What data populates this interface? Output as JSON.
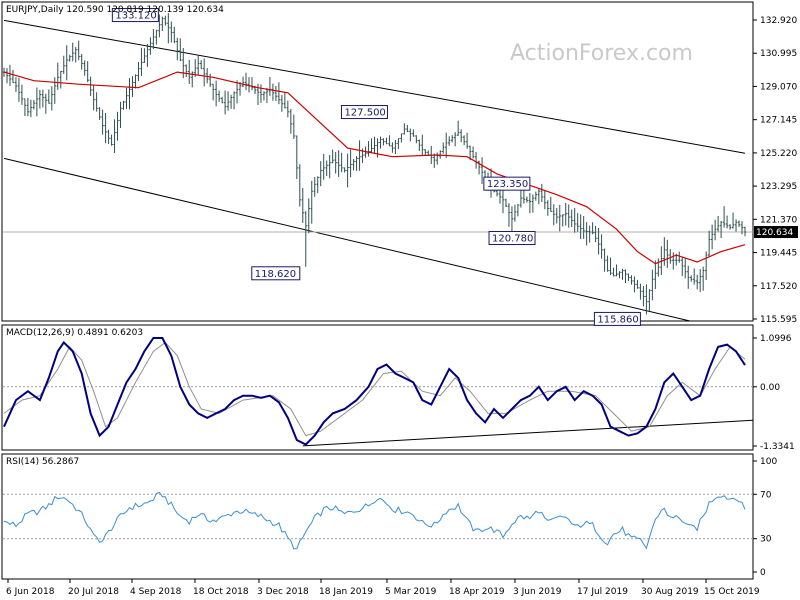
{
  "chart_data": [
    {
      "type": "candlestick",
      "symbol": "EURJPY",
      "timeframe": "Daily",
      "header": "EURJPY,Daily  120.590 120.819 120.139 120.634",
      "ohlc_last": {
        "open": 120.59,
        "high": 120.819,
        "low": 120.139,
        "close": 120.634
      },
      "current_price": 120.634,
      "current_price_label": "120.634",
      "watermark": "ActionForex.com",
      "y_ticks": [
        "132.920",
        "130.995",
        "129.070",
        "127.145",
        "125.220",
        "123.295",
        "121.370",
        "119.445",
        "117.520",
        "115.595"
      ],
      "ylim": [
        115.595,
        133.6
      ],
      "x_labels": [
        "6 Jun 2018",
        "20 Jul 2018",
        "4 Sep 2018",
        "18 Oct 2018",
        "3 Dec 2018",
        "18 Jan 2019",
        "5 Mar 2019",
        "18 Apr 2019",
        "3 Jun 2019",
        "17 Jul 2019",
        "30 Aug 2019",
        "15 Oct 2019"
      ],
      "annotations": [
        {
          "text": "133.120",
          "value": 133.12
        },
        {
          "text": "127.500",
          "value": 127.5
        },
        {
          "text": "123.350",
          "value": 123.35
        },
        {
          "text": "120.780",
          "value": 120.78
        },
        {
          "text": "118.620",
          "value": 118.62
        },
        {
          "text": "115.860",
          "value": 115.86
        }
      ],
      "price_path": [
        [
          0,
          129.9
        ],
        [
          4,
          129.1
        ],
        [
          8,
          127.6
        ],
        [
          12,
          128.6
        ],
        [
          15,
          128.1
        ],
        [
          18,
          129.6
        ],
        [
          21,
          130.6
        ],
        [
          24,
          131.2
        ],
        [
          27,
          130.0
        ],
        [
          30,
          128.3
        ],
        [
          33,
          126.8
        ],
        [
          36,
          125.7
        ],
        [
          39,
          127.8
        ],
        [
          42,
          128.9
        ],
        [
          45,
          130.1
        ],
        [
          48,
          131.2
        ],
        [
          51,
          132.3
        ],
        [
          53,
          133.0
        ],
        [
          56,
          132.2
        ],
        [
          59,
          130.6
        ],
        [
          62,
          129.6
        ],
        [
          65,
          130.4
        ],
        [
          68,
          129.5
        ],
        [
          71,
          128.6
        ],
        [
          74,
          127.9
        ],
        [
          77,
          128.7
        ],
        [
          80,
          129.3
        ],
        [
          83,
          129.0
        ],
        [
          86,
          128.6
        ],
        [
          89,
          128.9
        ],
        [
          92,
          128.3
        ],
        [
          95,
          127.6
        ],
        [
          97,
          126.2
        ],
        [
          99,
          122.5
        ],
        [
          101,
          121.0
        ],
        [
          103,
          123.0
        ],
        [
          106,
          124.2
        ],
        [
          110,
          124.8
        ],
        [
          114,
          124.2
        ],
        [
          118,
          124.9
        ],
        [
          122,
          125.3
        ],
        [
          126,
          126.0
        ],
        [
          130,
          125.5
        ],
        [
          134,
          126.6
        ],
        [
          137,
          126.2
        ],
        [
          140,
          125.4
        ],
        [
          144,
          124.8
        ],
        [
          148,
          125.8
        ],
        [
          152,
          126.4
        ],
        [
          155,
          125.6
        ],
        [
          158,
          124.7
        ],
        [
          161,
          123.8
        ],
        [
          164,
          123.0
        ],
        [
          167,
          122.5
        ],
        [
          170,
          121.4
        ],
        [
          173,
          122.6
        ],
        [
          176,
          122.4
        ],
        [
          179,
          123.0
        ],
        [
          182,
          122.0
        ],
        [
          185,
          121.5
        ],
        [
          188,
          121.7
        ],
        [
          191,
          121.1
        ],
        [
          194,
          120.7
        ],
        [
          197,
          120.6
        ],
        [
          200,
          119.6
        ],
        [
          202,
          118.4
        ],
        [
          204,
          118.1
        ],
        [
          207,
          118.4
        ],
        [
          210,
          117.8
        ],
        [
          213,
          117.2
        ],
        [
          215,
          116.6
        ],
        [
          217,
          117.9
        ],
        [
          219,
          118.6
        ],
        [
          221,
          119.6
        ],
        [
          223,
          119.0
        ],
        [
          226,
          119.0
        ],
        [
          229,
          118.0
        ],
        [
          232,
          117.7
        ],
        [
          234,
          118.4
        ],
        [
          236,
          120.2
        ],
        [
          238,
          120.8
        ],
        [
          240,
          121.2
        ],
        [
          243,
          120.9
        ],
        [
          245,
          121.2
        ],
        [
          247,
          120.9
        ],
        [
          248,
          120.63
        ]
      ],
      "moving_average_path": [
        [
          0,
          129.9
        ],
        [
          10,
          129.4
        ],
        [
          25,
          129.2
        ],
        [
          45,
          129.0
        ],
        [
          58,
          129.9
        ],
        [
          70,
          129.6
        ],
        [
          85,
          129.0
        ],
        [
          95,
          128.7
        ],
        [
          105,
          127.1
        ],
        [
          115,
          125.5
        ],
        [
          130,
          125.0
        ],
        [
          145,
          125.1
        ],
        [
          155,
          125.0
        ],
        [
          165,
          124.0
        ],
        [
          175,
          123.4
        ],
        [
          185,
          122.8
        ],
        [
          195,
          122.1
        ],
        [
          205,
          120.8
        ],
        [
          212,
          119.5
        ],
        [
          218,
          118.8
        ],
        [
          225,
          119.3
        ],
        [
          232,
          118.9
        ],
        [
          240,
          119.5
        ],
        [
          248,
          119.9
        ]
      ],
      "channel": {
        "upper": [
          [
            0,
            132.9
          ],
          [
            248,
            125.2
          ]
        ],
        "lower": [
          [
            0,
            124.9
          ],
          [
            230,
            115.4
          ]
        ]
      }
    },
    {
      "type": "line",
      "name": "MACD(12,26,9)",
      "header": "MACD(12,26,9)  0.4891 0.6203",
      "macd_last": 0.4891,
      "signal_last": 0.6203,
      "y_ticks": [
        "1.0996",
        "0.00",
        "-1.3341"
      ],
      "ylim": [
        -1.3341,
        1.0996
      ],
      "macd": [
        [
          0,
          -0.9
        ],
        [
          4,
          -0.3
        ],
        [
          8,
          -0.1
        ],
        [
          12,
          -0.3
        ],
        [
          15,
          0.2
        ],
        [
          18,
          0.8
        ],
        [
          20,
          1.0
        ],
        [
          23,
          0.8
        ],
        [
          26,
          0.3
        ],
        [
          29,
          -0.6
        ],
        [
          32,
          -1.1
        ],
        [
          35,
          -0.9
        ],
        [
          38,
          -0.4
        ],
        [
          41,
          0.1
        ],
        [
          44,
          0.4
        ],
        [
          47,
          0.8
        ],
        [
          50,
          1.1
        ],
        [
          53,
          1.1
        ],
        [
          56,
          0.7
        ],
        [
          59,
          0.0
        ],
        [
          62,
          -0.4
        ],
        [
          65,
          -0.6
        ],
        [
          68,
          -0.7
        ],
        [
          71,
          -0.6
        ],
        [
          74,
          -0.5
        ],
        [
          77,
          -0.3
        ],
        [
          80,
          -0.2
        ],
        [
          83,
          -0.2
        ],
        [
          86,
          -0.25
        ],
        [
          89,
          -0.2
        ],
        [
          92,
          -0.35
        ],
        [
          95,
          -0.7
        ],
        [
          98,
          -1.2
        ],
        [
          101,
          -1.3
        ],
        [
          104,
          -1.1
        ],
        [
          107,
          -0.8
        ],
        [
          110,
          -0.6
        ],
        [
          114,
          -0.5
        ],
        [
          118,
          -0.3
        ],
        [
          122,
          0.0
        ],
        [
          125,
          0.4
        ],
        [
          128,
          0.5
        ],
        [
          131,
          0.3
        ],
        [
          134,
          0.2
        ],
        [
          137,
          0.1
        ],
        [
          140,
          -0.3
        ],
        [
          143,
          -0.4
        ],
        [
          146,
          0.0
        ],
        [
          149,
          0.4
        ],
        [
          152,
          0.2
        ],
        [
          155,
          -0.3
        ],
        [
          158,
          -0.6
        ],
        [
          161,
          -0.8
        ],
        [
          164,
          -0.5
        ],
        [
          167,
          -0.7
        ],
        [
          170,
          -0.5
        ],
        [
          173,
          -0.3
        ],
        [
          176,
          -0.2
        ],
        [
          179,
          0.0
        ],
        [
          182,
          -0.3
        ],
        [
          185,
          -0.1
        ],
        [
          188,
          0.0
        ],
        [
          191,
          -0.3
        ],
        [
          194,
          -0.1
        ],
        [
          197,
          -0.2
        ],
        [
          200,
          -0.4
        ],
        [
          203,
          -0.9
        ],
        [
          206,
          -1.0
        ],
        [
          209,
          -1.1
        ],
        [
          212,
          -1.05
        ],
        [
          215,
          -0.9
        ],
        [
          218,
          -0.5
        ],
        [
          221,
          0.1
        ],
        [
          224,
          0.3
        ],
        [
          227,
          0.0
        ],
        [
          230,
          -0.3
        ],
        [
          233,
          -0.2
        ],
        [
          236,
          0.4
        ],
        [
          239,
          0.9
        ],
        [
          242,
          0.95
        ],
        [
          245,
          0.8
        ],
        [
          248,
          0.49
        ]
      ],
      "signal": [
        [
          0,
          -0.6
        ],
        [
          6,
          -0.3
        ],
        [
          12,
          -0.2
        ],
        [
          18,
          0.4
        ],
        [
          22,
          0.9
        ],
        [
          26,
          0.6
        ],
        [
          30,
          -0.1
        ],
        [
          34,
          -0.9
        ],
        [
          38,
          -0.7
        ],
        [
          44,
          0.1
        ],
        [
          50,
          0.8
        ],
        [
          54,
          1.0
        ],
        [
          58,
          0.7
        ],
        [
          62,
          0.0
        ],
        [
          66,
          -0.5
        ],
        [
          72,
          -0.6
        ],
        [
          80,
          -0.3
        ],
        [
          90,
          -0.2
        ],
        [
          96,
          -0.5
        ],
        [
          101,
          -1.1
        ],
        [
          106,
          -1.0
        ],
        [
          112,
          -0.7
        ],
        [
          120,
          -0.3
        ],
        [
          127,
          0.3
        ],
        [
          133,
          0.35
        ],
        [
          140,
          -0.1
        ],
        [
          146,
          -0.2
        ],
        [
          151,
          0.2
        ],
        [
          156,
          -0.1
        ],
        [
          162,
          -0.6
        ],
        [
          168,
          -0.6
        ],
        [
          176,
          -0.3
        ],
        [
          182,
          -0.1
        ],
        [
          190,
          -0.1
        ],
        [
          198,
          -0.2
        ],
        [
          204,
          -0.6
        ],
        [
          210,
          -1.0
        ],
        [
          216,
          -0.9
        ],
        [
          222,
          -0.2
        ],
        [
          227,
          0.1
        ],
        [
          233,
          -0.2
        ],
        [
          238,
          0.4
        ],
        [
          243,
          0.9
        ],
        [
          248,
          0.62
        ]
      ],
      "trendline": [
        [
          100,
          -1.33
        ],
        [
          248,
          -0.8
        ]
      ]
    },
    {
      "type": "line",
      "name": "RSI(14)",
      "header": "RSI(14)  56.2867",
      "rsi_last": 56.2867,
      "y_ticks": [
        "100",
        "70",
        "30",
        "0"
      ],
      "ylim": [
        0,
        100
      ],
      "levels": [
        70,
        30
      ],
      "rsi": [
        [
          0,
          45
        ],
        [
          4,
          42
        ],
        [
          8,
          52
        ],
        [
          12,
          55
        ],
        [
          15,
          60
        ],
        [
          18,
          68
        ],
        [
          21,
          66
        ],
        [
          24,
          58
        ],
        [
          27,
          48
        ],
        [
          30,
          32
        ],
        [
          33,
          28
        ],
        [
          36,
          40
        ],
        [
          39,
          50
        ],
        [
          42,
          58
        ],
        [
          45,
          60
        ],
        [
          48,
          62
        ],
        [
          51,
          68
        ],
        [
          53,
          70
        ],
        [
          56,
          60
        ],
        [
          59,
          50
        ],
        [
          62,
          46
        ],
        [
          65,
          52
        ],
        [
          68,
          48
        ],
        [
          71,
          46
        ],
        [
          74,
          50
        ],
        [
          77,
          54
        ],
        [
          80,
          55
        ],
        [
          83,
          52
        ],
        [
          86,
          50
        ],
        [
          89,
          46
        ],
        [
          92,
          42
        ],
        [
          95,
          30
        ],
        [
          98,
          20
        ],
        [
          101,
          36
        ],
        [
          104,
          48
        ],
        [
          107,
          56
        ],
        [
          110,
          58
        ],
        [
          114,
          52
        ],
        [
          118,
          56
        ],
        [
          122,
          60
        ],
        [
          125,
          68
        ],
        [
          128,
          62
        ],
        [
          131,
          56
        ],
        [
          134,
          55
        ],
        [
          137,
          52
        ],
        [
          140,
          44
        ],
        [
          144,
          42
        ],
        [
          148,
          55
        ],
        [
          152,
          60
        ],
        [
          155,
          46
        ],
        [
          158,
          36
        ],
        [
          161,
          40
        ],
        [
          164,
          38
        ],
        [
          167,
          32
        ],
        [
          170,
          44
        ],
        [
          173,
          50
        ],
        [
          176,
          48
        ],
        [
          179,
          56
        ],
        [
          182,
          44
        ],
        [
          185,
          48
        ],
        [
          188,
          50
        ],
        [
          191,
          40
        ],
        [
          194,
          44
        ],
        [
          197,
          42
        ],
        [
          200,
          32
        ],
        [
          202,
          26
        ],
        [
          204,
          34
        ],
        [
          207,
          38
        ],
        [
          210,
          30
        ],
        [
          213,
          28
        ],
        [
          215,
          22
        ],
        [
          217,
          40
        ],
        [
          219,
          52
        ],
        [
          221,
          58
        ],
        [
          223,
          48
        ],
        [
          226,
          50
        ],
        [
          229,
          40
        ],
        [
          232,
          40
        ],
        [
          234,
          50
        ],
        [
          236,
          62
        ],
        [
          238,
          68
        ],
        [
          240,
          70
        ],
        [
          243,
          66
        ],
        [
          245,
          68
        ],
        [
          247,
          60
        ],
        [
          248,
          56
        ]
      ]
    }
  ]
}
